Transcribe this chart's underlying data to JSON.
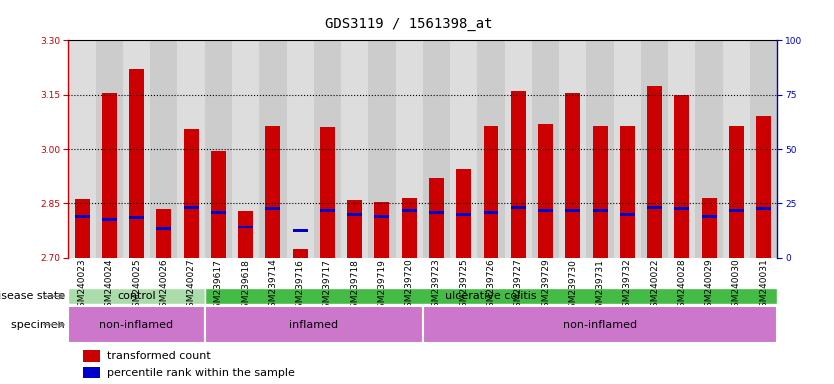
{
  "title": "GDS3119 / 1561398_at",
  "samples": [
    "GSM240023",
    "GSM240024",
    "GSM240025",
    "GSM240026",
    "GSM240027",
    "GSM239617",
    "GSM239618",
    "GSM239714",
    "GSM239716",
    "GSM239717",
    "GSM239718",
    "GSM239719",
    "GSM239720",
    "GSM239723",
    "GSM239725",
    "GSM239726",
    "GSM239727",
    "GSM239729",
    "GSM239730",
    "GSM239731",
    "GSM239732",
    "GSM240022",
    "GSM240028",
    "GSM240029",
    "GSM240030",
    "GSM240031"
  ],
  "transformed_count": [
    2.862,
    3.155,
    3.22,
    2.835,
    3.055,
    2.995,
    2.83,
    3.065,
    2.725,
    3.06,
    2.86,
    2.855,
    2.865,
    2.92,
    2.945,
    3.065,
    3.16,
    3.07,
    3.155,
    3.065,
    3.065,
    3.175,
    3.15,
    2.865,
    3.065,
    3.09
  ],
  "percentile_rank": [
    2.815,
    2.805,
    2.81,
    2.78,
    2.84,
    2.825,
    2.785,
    2.835,
    2.775,
    2.83,
    2.82,
    2.815,
    2.83,
    2.825,
    2.82,
    2.825,
    2.84,
    2.83,
    2.83,
    2.83,
    2.82,
    2.84,
    2.835,
    2.815,
    2.83,
    2.835
  ],
  "ylim_left": [
    2.7,
    3.3
  ],
  "yticks_left": [
    2.7,
    2.85,
    3.0,
    3.15,
    3.3
  ],
  "ylim_right": [
    0,
    100
  ],
  "yticks_right": [
    0,
    25,
    50,
    75,
    100
  ],
  "bar_color": "#cc0000",
  "marker_color": "#0000cc",
  "bar_width": 0.55,
  "disease_state_groups": [
    {
      "label": "control",
      "start": 0,
      "end": 5,
      "color": "#aaddaa"
    },
    {
      "label": "ulcerative colitis",
      "start": 5,
      "end": 26,
      "color": "#44bb44"
    }
  ],
  "specimen_groups": [
    {
      "label": "non-inflamed",
      "start": 0,
      "end": 5,
      "color": "#cc77cc"
    },
    {
      "label": "inflamed",
      "start": 5,
      "end": 13,
      "color": "#cc77cc"
    },
    {
      "label": "non-inflamed",
      "start": 13,
      "end": 26,
      "color": "#cc77cc"
    }
  ],
  "legend_items": [
    {
      "label": "transformed count",
      "color": "#cc0000"
    },
    {
      "label": "percentile rank within the sample",
      "color": "#0000cc"
    }
  ],
  "chart_bg": "#cccccc",
  "label_row_bg": "#cccccc",
  "title_fontsize": 10,
  "tick_fontsize": 6.5,
  "label_fontsize": 8,
  "annotation_fontsize": 8
}
